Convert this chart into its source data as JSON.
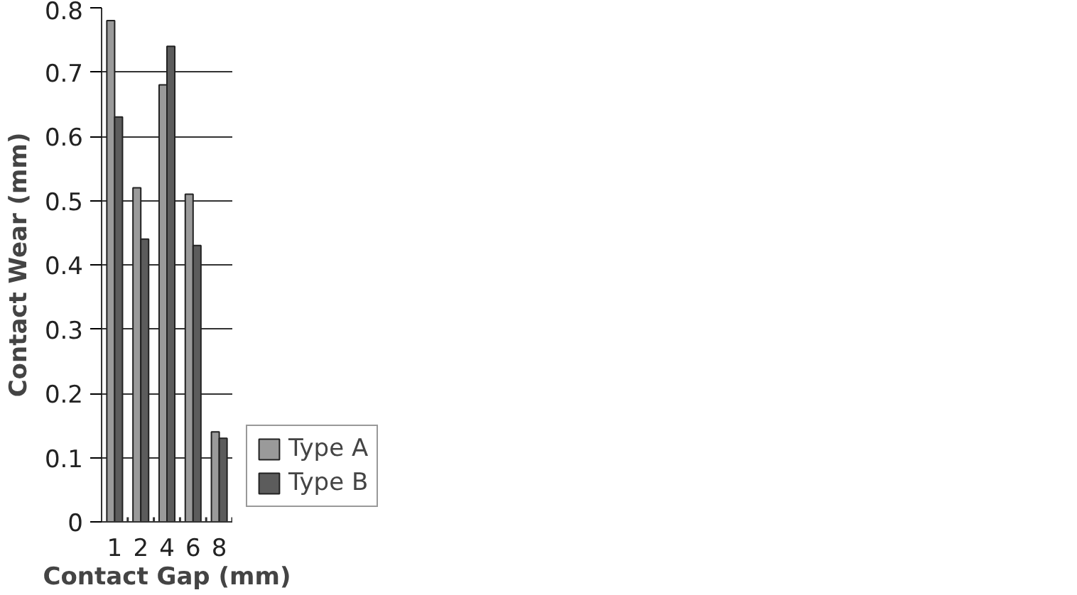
{
  "chart_data": {
    "type": "bar",
    "xlabel": "Contact Gap (mm)",
    "ylabel": "Contact Wear (mm)",
    "categories": [
      "1",
      "2",
      "4",
      "6",
      "8"
    ],
    "series": [
      {
        "name": "Type A",
        "color": "#9a9a9a",
        "values": [
          0.78,
          0.52,
          0.68,
          0.51,
          0.14
        ]
      },
      {
        "name": "Type B",
        "color": "#5c5c5c",
        "values": [
          0.63,
          0.44,
          0.74,
          0.43,
          0.13
        ]
      }
    ],
    "ylim": [
      0,
      0.8
    ],
    "yticks": [
      0,
      0.1,
      0.2,
      0.3,
      0.4,
      0.5,
      0.6,
      0.7,
      0.8
    ],
    "grid": "y",
    "legend": "right"
  }
}
